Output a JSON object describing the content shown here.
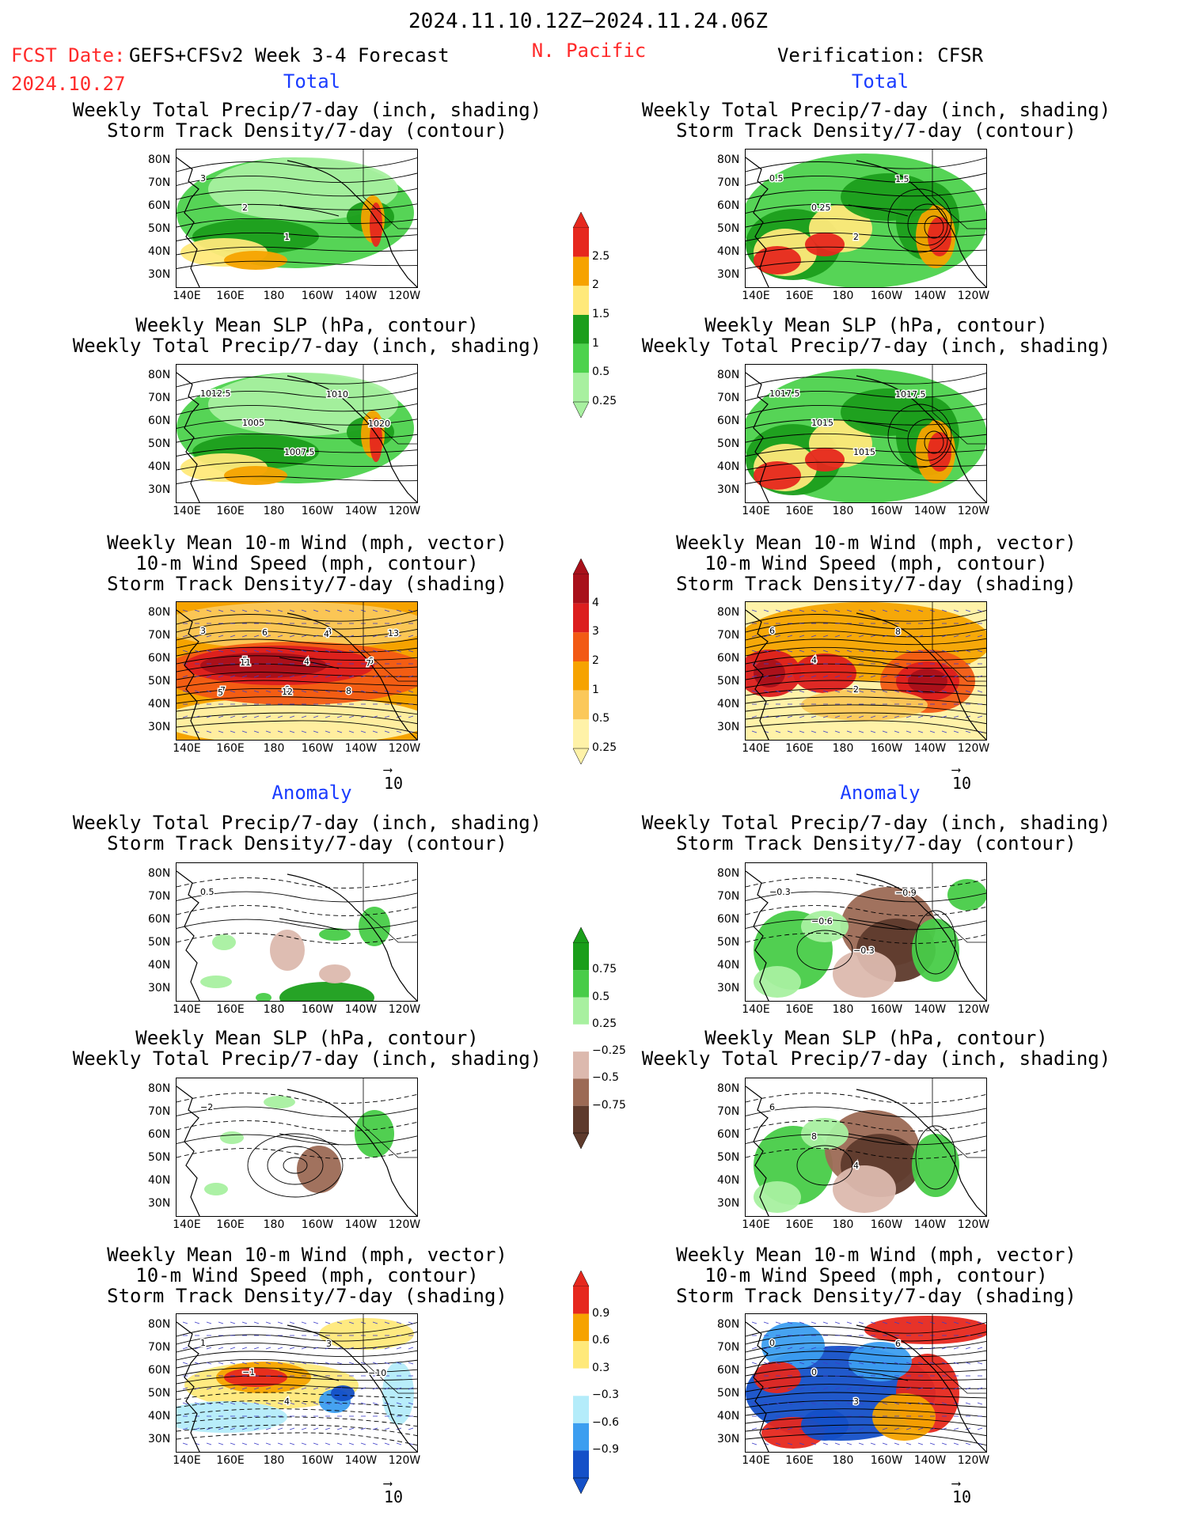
{
  "header": {
    "date_range": "2024.11.10.12Z−2024.11.24.06Z",
    "fcst_label": "FCST Date:",
    "model": "GEFS+CFSv2 Week 3-4 Forecast",
    "fcst_date": "2024.10.27",
    "region": "N. Pacific",
    "verification": "Verification: CFSR"
  },
  "sections": {
    "total": "Total",
    "anomaly": "Anomaly"
  },
  "titles": {
    "precip_track": [
      "Weekly Total Precip/7-day (inch, shading)",
      "Storm Track Density/7-day (contour)"
    ],
    "slp_precip": [
      "Weekly Mean SLP (hPa, contour)",
      "Weekly Total Precip/7-day (inch, shading)"
    ],
    "wind_track": [
      "Weekly Mean 10-m Wind (mph, vector)",
      "10-m Wind Speed (mph, contour)",
      "Storm Track Density/7-day (shading)"
    ]
  },
  "axes": {
    "lat_labels": [
      "80N",
      "70N",
      "60N",
      "50N",
      "40N",
      "30N"
    ],
    "lon_labels": [
      "140E",
      "160E",
      "180",
      "160W",
      "140W",
      "120W"
    ]
  },
  "vector_reference": "10",
  "colorbars": {
    "precip_total": {
      "labels": [
        "2.5",
        "2",
        "1.5",
        "1",
        "0.5",
        "0.25"
      ],
      "colors": [
        "#e6281e",
        "#f6a300",
        "#ffe97a",
        "#1c9e1c",
        "#4dd24d",
        "#a8f0a0"
      ]
    },
    "track_total": {
      "labels": [
        "4",
        "3",
        "2",
        "1",
        "0.5",
        "0.25"
      ],
      "colors": [
        "#a8101a",
        "#dc1e1e",
        "#f25a14",
        "#f6a300",
        "#fbc85a",
        "#fff2a8"
      ]
    },
    "precip_anom": {
      "labels": [
        "0.75",
        "0.5",
        "0.25",
        "−0.25",
        "−0.5",
        "−0.75"
      ],
      "colors": [
        "#1a9e1a",
        "#48cc48",
        "#a8f0a0",
        "#ffffff",
        "#dcb9ae",
        "#9c6a55",
        "#5e3a2c"
      ]
    },
    "track_anom": {
      "labels": [
        "0.9",
        "0.6",
        "0.3",
        "−0.3",
        "−0.6",
        "−0.9"
      ],
      "colors": [
        "#e6281e",
        "#f6a300",
        "#ffe97a",
        "#ffffff",
        "#b4ecfa",
        "#3c9ef0",
        "#1450c8"
      ]
    }
  },
  "panels": {
    "l1": {
      "labels": [
        "3",
        "2",
        "1"
      ]
    },
    "r1": {
      "labels": [
        "0.5",
        "0.25",
        "2",
        "1.5"
      ]
    },
    "l2": {
      "labels": [
        "1012.5",
        "1005",
        "1007.5",
        "1010",
        "1020"
      ]
    },
    "r2": {
      "labels": [
        "1017.5",
        "1015",
        "1015",
        "1017.5"
      ]
    },
    "l3": {
      "labels": [
        "3",
        "5",
        "6",
        "8",
        "6",
        "7",
        "6",
        "4",
        "8",
        "13",
        "11",
        "12",
        "4",
        "7",
        "5"
      ]
    },
    "r3": {
      "labels": [
        "6",
        "4",
        "2",
        "8"
      ]
    },
    "l4": {
      "labels": [
        "0.5"
      ]
    },
    "r4": {
      "labels": [
        "−0.3",
        "−0.6",
        "−0.3",
        "−0.9"
      ]
    },
    "l5": {
      "labels": [
        "−2"
      ]
    },
    "r5": {
      "labels": [
        "6",
        "8",
        "4"
      ]
    },
    "l6": {
      "labels": [
        "1",
        "−1",
        "4",
        "3",
        "−10"
      ]
    },
    "r6": {
      "labels": [
        "0",
        "0",
        "3",
        "6"
      ]
    }
  }
}
